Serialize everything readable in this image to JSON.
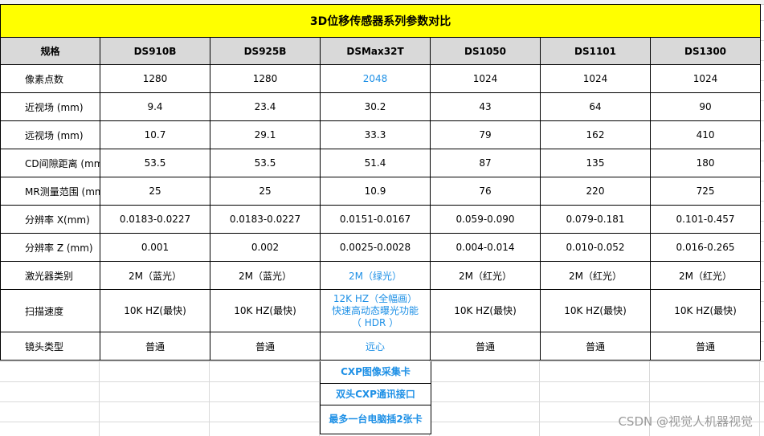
{
  "title": "3D位移传感器系列参数对比",
  "columns": [
    "规格",
    "DS910B",
    "DS925B",
    "DSMax32T",
    "DS1050",
    "DS1101",
    "DS1300"
  ],
  "rows": [
    {
      "label": "像素点数",
      "values": [
        "1280",
        "1280",
        "2048",
        "1024",
        "1024",
        "1024"
      ]
    },
    {
      "label": "近视场 (mm)",
      "values": [
        "9.4",
        "23.4",
        "30.2",
        "43",
        "64",
        "90"
      ]
    },
    {
      "label": "远视场 (mm)",
      "values": [
        "10.7",
        "29.1",
        "33.3",
        "79",
        "162",
        "410"
      ]
    },
    {
      "label": "CD间隙距离 (mm)",
      "values": [
        "53.5",
        "53.5",
        "51.4",
        "87",
        "135",
        "180"
      ]
    },
    {
      "label": "MR测量范围 (mm)",
      "values": [
        "25",
        "25",
        "10.9",
        "76",
        "220",
        "725"
      ]
    },
    {
      "label": "分辨率 X(mm)",
      "values": [
        "0.0183-0.0227",
        "0.0183-0.0227",
        "0.0151-0.0167",
        "0.059-0.090",
        "0.079-0.181",
        "0.101-0.457"
      ]
    },
    {
      "label": "分辨率 Z (mm)",
      "values": [
        "0.001",
        "0.002",
        "0.0025-0.0028",
        "0.004-0.014",
        "0.010-0.052",
        "0.016-0.265"
      ]
    },
    {
      "label": "激光器类别",
      "values": [
        "2M（蓝光）",
        "2M（蓝光）",
        "2M（绿光）",
        "2M（红光）",
        "2M（红光）",
        "2M（红光）"
      ]
    },
    {
      "label": "扫描速度",
      "values": [
        "10K HZ(最快)",
        "10K HZ(最快)",
        "12K HZ（全幅画）\n快速高动态曝光功能\n（ HDR ）",
        "10K HZ(最快)",
        "10K HZ(最快)",
        "10K HZ(最快)"
      ]
    },
    {
      "label": "镜头类型",
      "values": [
        "普通",
        "普通",
        "远心",
        "普通",
        "普通",
        "普通"
      ]
    }
  ],
  "extras": [
    "CXP图像采集卡",
    "双头CXP通讯接口",
    "最多一台电脑插2张卡"
  ],
  "watermark": "CSDN @视觉人机器视觉",
  "colors": {
    "title_bg": "#ffff00",
    "header_bg": "#d9d9d9",
    "highlight": "#1e90e6"
  }
}
